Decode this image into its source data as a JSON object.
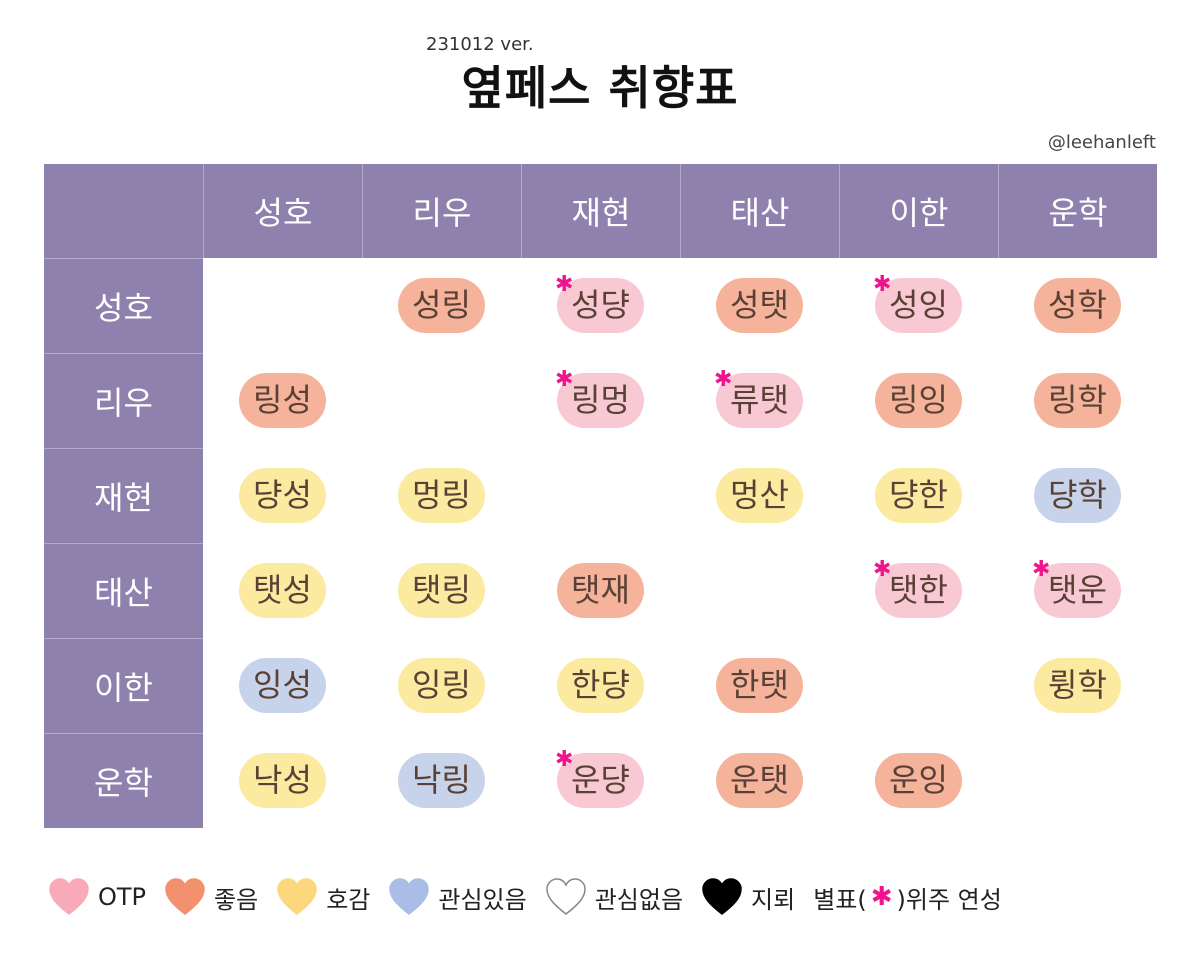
{
  "version": "231012 ver.",
  "title": "옆페스 취향표",
  "handle": "@leehanleft",
  "columns": [
    "성호",
    "리우",
    "재현",
    "태산",
    "이한",
    "운학"
  ],
  "rows": [
    "성호",
    "리우",
    "재현",
    "태산",
    "이한",
    "운학"
  ],
  "cells": [
    [
      null,
      {
        "text": "성링",
        "color": "like"
      },
      {
        "text": "성댱",
        "color": "otp",
        "star": true
      },
      {
        "text": "성탯",
        "color": "like"
      },
      {
        "text": "성잉",
        "color": "otp",
        "star": true
      },
      {
        "text": "성학",
        "color": "like"
      }
    ],
    [
      {
        "text": "링성",
        "color": "like"
      },
      null,
      {
        "text": "링멍",
        "color": "otp",
        "star": true
      },
      {
        "text": "류탯",
        "color": "otp",
        "star": true
      },
      {
        "text": "링잉",
        "color": "like"
      },
      {
        "text": "링학",
        "color": "like"
      }
    ],
    [
      {
        "text": "댱성",
        "color": "good"
      },
      {
        "text": "멍링",
        "color": "good"
      },
      null,
      {
        "text": "멍산",
        "color": "good"
      },
      {
        "text": "댱한",
        "color": "good"
      },
      {
        "text": "댱학",
        "color": "int"
      }
    ],
    [
      {
        "text": "탯성",
        "color": "good"
      },
      {
        "text": "탯링",
        "color": "good"
      },
      {
        "text": "탯재",
        "color": "like"
      },
      null,
      {
        "text": "탯한",
        "color": "otp",
        "star": true
      },
      {
        "text": "탯운",
        "color": "otp",
        "star": true
      }
    ],
    [
      {
        "text": "잉성",
        "color": "int"
      },
      {
        "text": "잉링",
        "color": "good"
      },
      {
        "text": "한댱",
        "color": "good"
      },
      {
        "text": "한탯",
        "color": "like"
      },
      null,
      {
        "text": "륑학",
        "color": "good"
      }
    ],
    [
      {
        "text": "낙성",
        "color": "good"
      },
      {
        "text": "낙링",
        "color": "int"
      },
      {
        "text": "운댱",
        "color": "otp",
        "star": true
      },
      {
        "text": "운탯",
        "color": "like"
      },
      {
        "text": "운잉",
        "color": "like"
      },
      null
    ]
  ],
  "star_glyph": "✱",
  "legend": [
    {
      "label": "OTP",
      "color": "#f8aab9",
      "icon": "heart-icon"
    },
    {
      "label": "좋음",
      "color": "#f3906e",
      "icon": "heart-icon"
    },
    {
      "label": "호감",
      "color": "#fcd77d",
      "icon": "heart-icon"
    },
    {
      "label": "관심있음",
      "color": "#a9bde6",
      "icon": "heart-icon"
    },
    {
      "label": "관심없음",
      "color": "#ffffff",
      "icon": "heart-outline-icon"
    },
    {
      "label": "지뢰",
      "color": "#000000",
      "icon": "heart-icon"
    }
  ],
  "legend_star_prefix": "별표(",
  "legend_star_suffix": ")위주 연성"
}
